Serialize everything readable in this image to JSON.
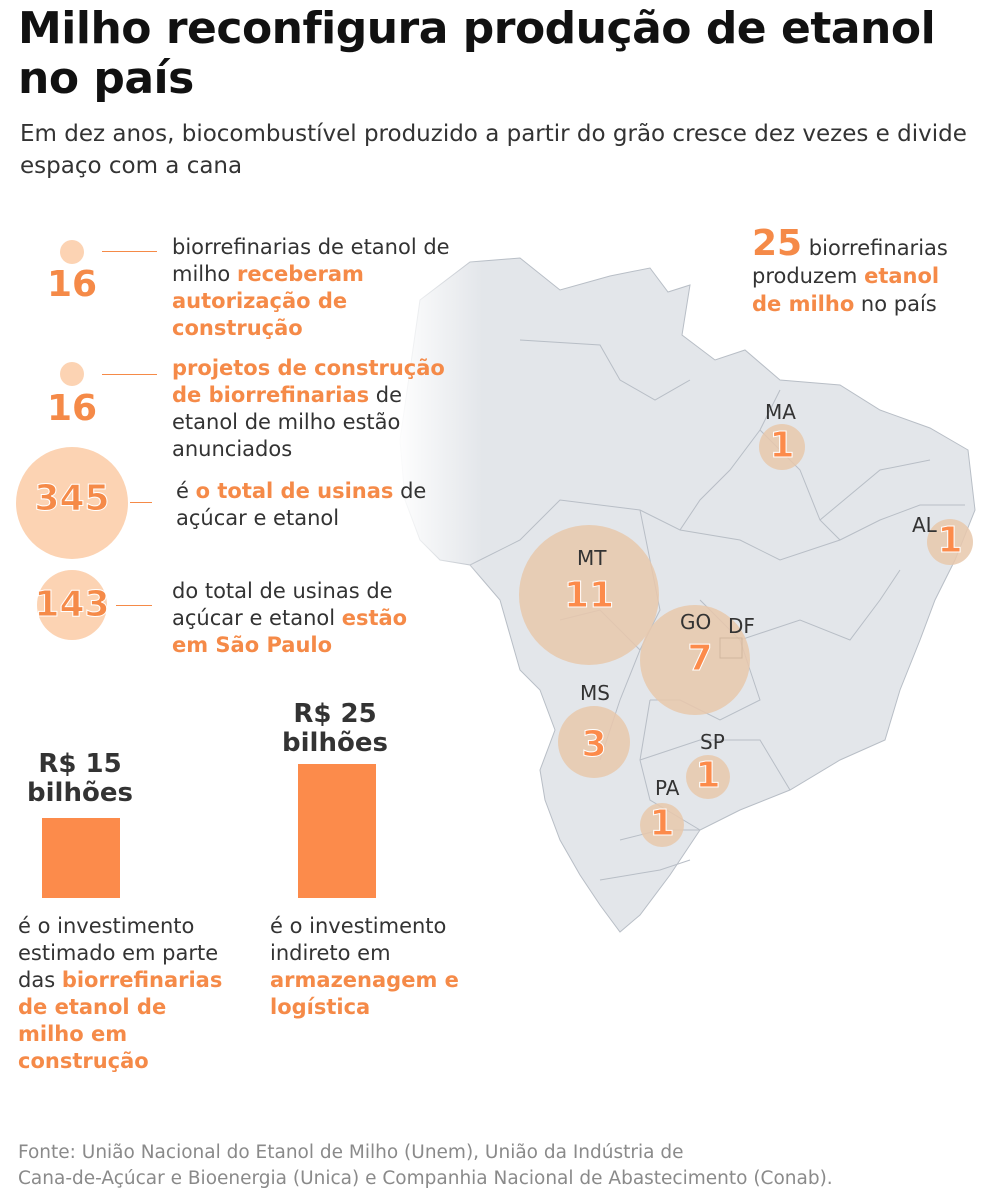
{
  "title": "Milho reconfigura produção de etanol no país",
  "subtitle": "Em dez anos, biocombustível produzido a partir do grão cresce dez vezes e divide espaço com a cana",
  "stats": [
    {
      "number": "16",
      "text_plain_1": "biorrefinarias de etanol de milho ",
      "text_highlight": "receberam autorização de construção",
      "text_plain_2": ""
    },
    {
      "number": "16",
      "text_plain_1": "",
      "text_highlight": "projetos de construção de biorrefinarias",
      "text_plain_2": " de etanol de milho estão anunciados"
    },
    {
      "number": "345",
      "text_plain_1": "é ",
      "text_highlight": "o total de usinas",
      "text_plain_2": " de açúcar e etanol"
    },
    {
      "number": "143",
      "text_plain_1": "do total de usinas de açúcar e etanol ",
      "text_highlight": "estão em São Paulo",
      "text_plain_2": ""
    }
  ],
  "investments": [
    {
      "amount": "R$ 15 bilhões",
      "value_billion_brl": 15,
      "text_plain": "é o investimento estimado em parte das ",
      "text_highlight": "biorrefinarias de etanol de milho em construção"
    },
    {
      "amount": "R$ 25 bilhões",
      "value_billion_brl": 25,
      "text_plain": "é o investimento indireto em ",
      "text_highlight": "armazenagem e logística"
    }
  ],
  "map": {
    "headline_number": "25",
    "headline_plain_1": " biorrefinarias produzem ",
    "headline_highlight": "etanol de milho",
    "headline_plain_2": " no país",
    "states": [
      {
        "code": "MA",
        "count": "1"
      },
      {
        "code": "AL",
        "count": "1"
      },
      {
        "code": "MT",
        "count": "11"
      },
      {
        "code": "GO",
        "count": "7"
      },
      {
        "code": "DF",
        "count": ""
      },
      {
        "code": "MS",
        "count": "3"
      },
      {
        "code": "SP",
        "count": "1"
      },
      {
        "code": "PA",
        "count": "1"
      }
    ]
  },
  "colors": {
    "accent": "#fc8b4b",
    "map_fill": "#e3e6ea",
    "bubble": "#e8c8ac"
  },
  "source_line_1": "Fonte: União Nacional do Etanol de Milho (Unem), União da Indústria de",
  "source_line_2": "Cana-de-Açúcar e Bioenergia (Unica) e Companhia Nacional de Abastecimento (Conab)."
}
